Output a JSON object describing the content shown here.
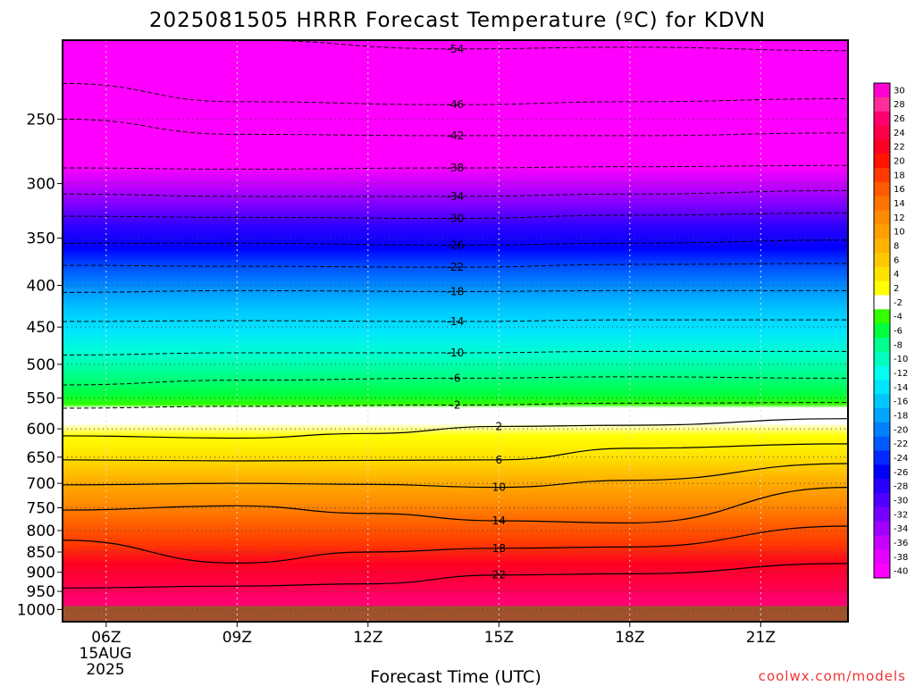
{
  "chart_data": {
    "type": "heatmap",
    "title": "2025081505 HRRR Forecast Temperature (ºC) for KDVN",
    "xlabel": "Forecast Time (UTC)",
    "ylabel": "",
    "x_ticks": [
      "06Z",
      "09Z",
      "12Z",
      "15Z",
      "18Z",
      "21Z"
    ],
    "x_date_label": [
      "15AUG",
      "2025"
    ],
    "xlim_hours": [
      5,
      23
    ],
    "y_ticks": [
      250,
      300,
      350,
      400,
      450,
      500,
      550,
      600,
      650,
      700,
      750,
      800,
      850,
      900,
      950,
      1000
    ],
    "ylim_hPa": [
      1035,
      200
    ],
    "y_scale": "log",
    "grid": true,
    "colorbar_levels": [
      30,
      28,
      26,
      24,
      22,
      20,
      18,
      16,
      14,
      12,
      10,
      8,
      6,
      4,
      2,
      -2,
      -4,
      -6,
      -8,
      -10,
      -12,
      -14,
      -16,
      -18,
      -20,
      -22,
      -24,
      -26,
      -28,
      -30,
      -32,
      -34,
      -36,
      -38,
      -40
    ],
    "colorbar_colors": [
      "#ff00d2",
      "#ff2d9a",
      "#ff0070",
      "#ff0048",
      "#ff0022",
      "#ff1400",
      "#ff3a00",
      "#ff5a00",
      "#ff7400",
      "#ff8c00",
      "#ffa000",
      "#ffb400",
      "#ffc800",
      "#ffe100",
      "#ffff00",
      "#ffffff",
      "#33ff00",
      "#00ff3c",
      "#00ff8c",
      "#00ffbe",
      "#00fff0",
      "#00e6ff",
      "#00c8ff",
      "#00a5ff",
      "#0082ff",
      "#005aff",
      "#0028ff",
      "#0000ff",
      "#2800ff",
      "#5000ff",
      "#7800ff",
      "#a000ff",
      "#c800ff",
      "#e600ff",
      "#ff00ff"
    ],
    "series": [
      {
        "name": "-54",
        "values": [
          {
            "x": 5,
            "y": 200
          },
          {
            "x": 9,
            "y": 200
          },
          {
            "x": 14,
            "y": 205
          },
          {
            "x": 18,
            "y": 204
          },
          {
            "x": 23,
            "y": 206
          }
        ]
      },
      {
        "name": "-46",
        "values": [
          {
            "x": 5,
            "y": 226
          },
          {
            "x": 9,
            "y": 238
          },
          {
            "x": 14,
            "y": 240
          },
          {
            "x": 18,
            "y": 238
          },
          {
            "x": 23,
            "y": 236
          }
        ]
      },
      {
        "name": "-42",
        "values": [
          {
            "x": 5,
            "y": 250
          },
          {
            "x": 9,
            "y": 261
          },
          {
            "x": 14,
            "y": 262
          },
          {
            "x": 18,
            "y": 262
          },
          {
            "x": 23,
            "y": 260
          }
        ]
      },
      {
        "name": "-38",
        "values": [
          {
            "x": 5,
            "y": 287
          },
          {
            "x": 9,
            "y": 288
          },
          {
            "x": 14,
            "y": 287
          },
          {
            "x": 18,
            "y": 286
          },
          {
            "x": 23,
            "y": 285
          }
        ]
      },
      {
        "name": "-34",
        "values": [
          {
            "x": 5,
            "y": 309
          },
          {
            "x": 9,
            "y": 311
          },
          {
            "x": 14,
            "y": 311
          },
          {
            "x": 18,
            "y": 309
          },
          {
            "x": 23,
            "y": 306
          }
        ]
      },
      {
        "name": "-30",
        "values": [
          {
            "x": 5,
            "y": 329
          },
          {
            "x": 9,
            "y": 330
          },
          {
            "x": 14,
            "y": 331
          },
          {
            "x": 18,
            "y": 328
          },
          {
            "x": 23,
            "y": 326
          }
        ]
      },
      {
        "name": "-26",
        "values": [
          {
            "x": 5,
            "y": 355
          },
          {
            "x": 9,
            "y": 355
          },
          {
            "x": 14,
            "y": 357
          },
          {
            "x": 18,
            "y": 355
          },
          {
            "x": 23,
            "y": 352
          }
        ]
      },
      {
        "name": "-22",
        "values": [
          {
            "x": 5,
            "y": 378
          },
          {
            "x": 9,
            "y": 379
          },
          {
            "x": 14,
            "y": 380
          },
          {
            "x": 18,
            "y": 377
          },
          {
            "x": 23,
            "y": 376
          }
        ]
      },
      {
        "name": "-18",
        "values": [
          {
            "x": 5,
            "y": 408
          },
          {
            "x": 9,
            "y": 406
          },
          {
            "x": 14,
            "y": 407
          },
          {
            "x": 18,
            "y": 406
          },
          {
            "x": 23,
            "y": 406
          }
        ]
      },
      {
        "name": "-14",
        "values": [
          {
            "x": 5,
            "y": 443
          },
          {
            "x": 9,
            "y": 442
          },
          {
            "x": 14,
            "y": 443
          },
          {
            "x": 18,
            "y": 441
          },
          {
            "x": 23,
            "y": 441
          }
        ]
      },
      {
        "name": "-10",
        "values": [
          {
            "x": 5,
            "y": 487
          },
          {
            "x": 9,
            "y": 484
          },
          {
            "x": 14,
            "y": 484
          },
          {
            "x": 18,
            "y": 482
          },
          {
            "x": 23,
            "y": 482
          }
        ]
      },
      {
        "name": "-6",
        "values": [
          {
            "x": 5,
            "y": 530
          },
          {
            "x": 9,
            "y": 523
          },
          {
            "x": 14,
            "y": 520
          },
          {
            "x": 18,
            "y": 518
          },
          {
            "x": 23,
            "y": 520
          }
        ]
      },
      {
        "name": "-2",
        "values": [
          {
            "x": 5,
            "y": 566
          },
          {
            "x": 9,
            "y": 563
          },
          {
            "x": 14,
            "y": 561
          },
          {
            "x": 18,
            "y": 558
          },
          {
            "x": 23,
            "y": 557
          }
        ]
      },
      {
        "name": "2",
        "values": [
          {
            "x": 5,
            "y": 612
          },
          {
            "x": 9,
            "y": 616
          },
          {
            "x": 12,
            "y": 608
          },
          {
            "x": 15,
            "y": 596
          },
          {
            "x": 18,
            "y": 594
          },
          {
            "x": 23,
            "y": 583
          }
        ]
      },
      {
        "name": "6",
        "values": [
          {
            "x": 5,
            "y": 655
          },
          {
            "x": 9,
            "y": 657
          },
          {
            "x": 12,
            "y": 656
          },
          {
            "x": 15,
            "y": 655
          },
          {
            "x": 18,
            "y": 634
          },
          {
            "x": 23,
            "y": 626
          }
        ]
      },
      {
        "name": "10",
        "values": [
          {
            "x": 5,
            "y": 703
          },
          {
            "x": 9,
            "y": 700
          },
          {
            "x": 12,
            "y": 702
          },
          {
            "x": 15,
            "y": 708
          },
          {
            "x": 18,
            "y": 694
          },
          {
            "x": 23,
            "y": 662
          }
        ]
      },
      {
        "name": "14",
        "values": [
          {
            "x": 5,
            "y": 755
          },
          {
            "x": 9,
            "y": 746
          },
          {
            "x": 12,
            "y": 762
          },
          {
            "x": 15,
            "y": 778
          },
          {
            "x": 18,
            "y": 783
          },
          {
            "x": 23,
            "y": 708
          }
        ]
      },
      {
        "name": "18",
        "values": [
          {
            "x": 5,
            "y": 822
          },
          {
            "x": 9,
            "y": 877
          },
          {
            "x": 12,
            "y": 850
          },
          {
            "x": 15,
            "y": 841
          },
          {
            "x": 18,
            "y": 838
          },
          {
            "x": 23,
            "y": 790
          }
        ]
      },
      {
        "name": "22",
        "values": [
          {
            "x": 5,
            "y": 941
          },
          {
            "x": 9,
            "y": 936
          },
          {
            "x": 12,
            "y": 930
          },
          {
            "x": 15,
            "y": 907
          },
          {
            "x": 18,
            "y": 904
          },
          {
            "x": 23,
            "y": 878
          }
        ]
      }
    ]
  },
  "credit": "coolwx.com/models"
}
